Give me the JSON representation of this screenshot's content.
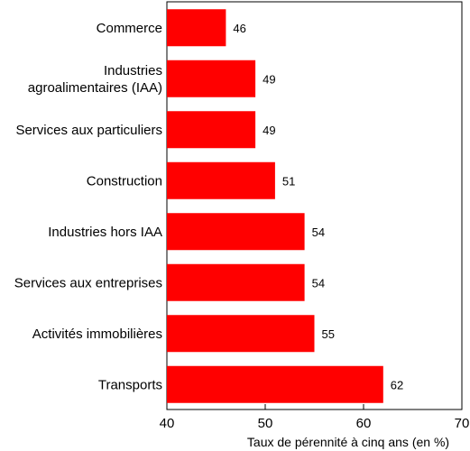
{
  "chart_data": {
    "type": "bar",
    "orientation": "horizontal",
    "categories": [
      [
        "Commerce"
      ],
      [
        "Industries",
        "agroalimentaires (IAA)"
      ],
      [
        "Services aux particuliers"
      ],
      [
        "Construction"
      ],
      [
        "Industries hors IAA"
      ],
      [
        "Services aux entreprises"
      ],
      [
        "Activités immobilières"
      ],
      [
        "Transports"
      ]
    ],
    "values": [
      46,
      49,
      49,
      51,
      54,
      54,
      55,
      62
    ],
    "value_labels": [
      "46",
      "49",
      "49",
      "51",
      "54",
      "54",
      "55",
      "62"
    ],
    "xlabel": "Taux de pérennité à cinq ans (en %)",
    "xlim": [
      40,
      70
    ],
    "xticks": [
      40,
      50,
      60,
      70
    ],
    "xtick_labels": [
      "40",
      "50",
      "60",
      "70"
    ],
    "bar_color": "#ff0000",
    "grid": false
  }
}
